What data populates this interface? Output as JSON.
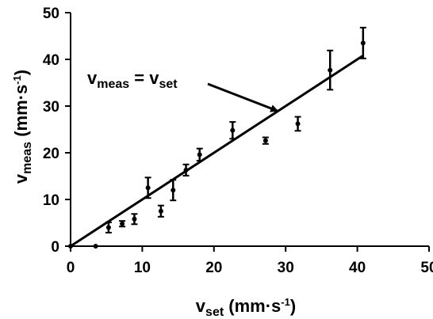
{
  "chart_data": {
    "type": "scatter",
    "title": "",
    "xlabel": {
      "main": "v",
      "sub": "set",
      "unit": " (mm·s",
      "sup": "-1",
      "close": ")"
    },
    "ylabel": {
      "main": "v",
      "sub": "meas",
      "unit": " (mm·s",
      "sup": "-1",
      "close": ")"
    },
    "xlim": [
      0,
      50
    ],
    "ylim": [
      0,
      50
    ],
    "xticks": [
      0,
      10,
      20,
      30,
      40,
      50
    ],
    "yticks": [
      0,
      10,
      20,
      30,
      40,
      50
    ],
    "grid": false,
    "points": [
      {
        "x": 0,
        "y": 0,
        "err": 0
      },
      {
        "x": 3.5,
        "y": 0,
        "err": 0
      },
      {
        "x": 5.3,
        "y": 4.0,
        "err": 1.1
      },
      {
        "x": 7.2,
        "y": 4.8,
        "err": 0.6
      },
      {
        "x": 8.9,
        "y": 5.8,
        "err": 1.1
      },
      {
        "x": 10.8,
        "y": 12.5,
        "err": 2.2
      },
      {
        "x": 12.6,
        "y": 7.5,
        "err": 1.2
      },
      {
        "x": 14.3,
        "y": 12.0,
        "err": 2.2
      },
      {
        "x": 16.1,
        "y": 16.3,
        "err": 1.2
      },
      {
        "x": 18.0,
        "y": 19.6,
        "err": 1.3
      },
      {
        "x": 22.6,
        "y": 24.8,
        "err": 1.8
      },
      {
        "x": 27.2,
        "y": 22.6,
        "err": 0.7
      },
      {
        "x": 31.7,
        "y": 26.2,
        "err": 1.5
      },
      {
        "x": 36.2,
        "y": 37.7,
        "err": 4.2
      },
      {
        "x": 40.8,
        "y": 43.5,
        "err": 3.3
      }
    ],
    "identity_line": {
      "x_start": 0,
      "x_end": 40.8
    },
    "annotation": {
      "main": "v",
      "sub1": "meas",
      "eq": " = v",
      "sub2": "set",
      "arrow_to": {
        "x": 28.8,
        "y": 29.0
      }
    }
  }
}
